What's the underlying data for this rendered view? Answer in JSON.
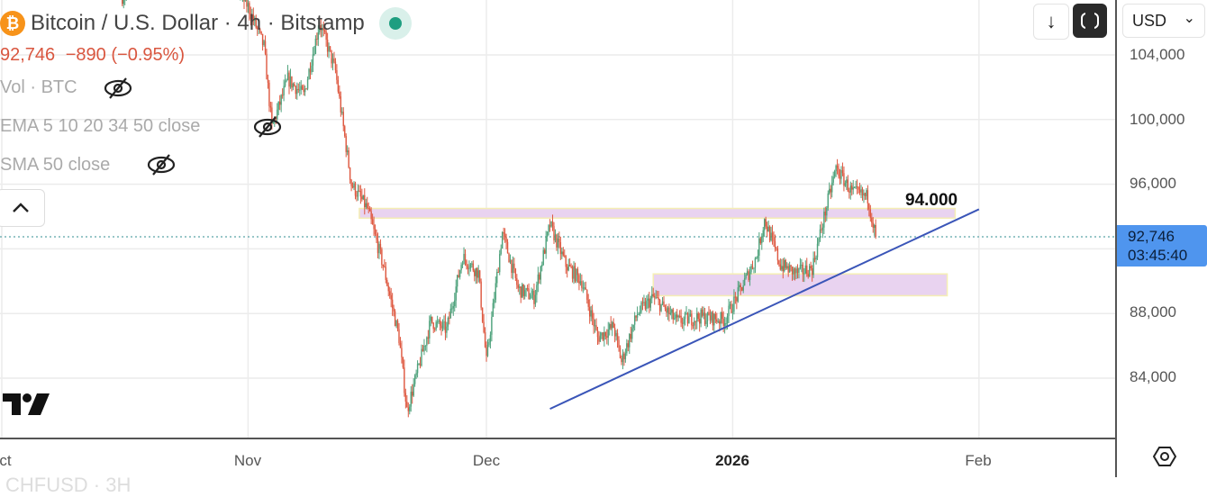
{
  "header": {
    "title": "Bitcoin / U.S. Dollar · 4h · Bitstamp",
    "coin_symbol": "₿",
    "price": "92,746",
    "change": "−890",
    "change_pct": "(−0.95%)"
  },
  "indicators": [
    {
      "label": "Vol · BTC",
      "icon": "eye-off-icon"
    },
    {
      "label": "EMA 5 10 20 34 50 close",
      "icon": "eye-off-icon"
    },
    {
      "label": "SMA 50 close",
      "icon": "eye-off-icon"
    }
  ],
  "toolbar": {
    "scroll_down_icon": "↓",
    "currency": "USD",
    "currency_chevron": "⌄"
  },
  "price_axis": {
    "current_price": "92,746",
    "countdown": "03:45:40",
    "ticks": [
      "104,000",
      "100,000",
      "96,000",
      "88,000",
      "84,000"
    ]
  },
  "time_axis": {
    "ticks": [
      "ct",
      "Nov",
      "Dec",
      "2026",
      "Feb"
    ]
  },
  "footer_ghost": "CHFUSD · 3H",
  "annotations": {
    "zone_label": "94.000"
  },
  "colors": {
    "up": "#4ea27c",
    "down": "#de5840",
    "trendline": "#3a55b8",
    "zone": "#e9d3f0",
    "zone_border": "#f5eeb4",
    "accent": "#4f95ee"
  },
  "chart_data": {
    "type": "candlestick",
    "interval": "4h",
    "symbol": "BTCUSD",
    "ylim": [
      80000,
      107400
    ],
    "y_ticks": [
      84000,
      88000,
      92000,
      96000,
      100000,
      104000
    ],
    "x_ticks": [
      {
        "label": "ct",
        "date": "2025-10-01"
      },
      {
        "label": "Nov",
        "date": "2025-11-01"
      },
      {
        "label": "Dec",
        "date": "2025-12-01"
      },
      {
        "label": "2026",
        "date": "2026-01-01"
      },
      {
        "label": "Feb",
        "date": "2026-02-01"
      }
    ],
    "last_price": 92746,
    "price_path": [
      [
        "2025-10-16",
        107500
      ],
      [
        "2025-10-20",
        110000
      ],
      [
        "2025-10-26",
        111000
      ],
      [
        "2025-10-30",
        108500
      ],
      [
        "2025-11-01",
        107000
      ],
      [
        "2025-11-03",
        104500
      ],
      [
        "2025-11-04",
        99500
      ],
      [
        "2025-11-06",
        102500
      ],
      [
        "2025-11-08",
        101500
      ],
      [
        "2025-11-10",
        106000
      ],
      [
        "2025-11-12",
        103000
      ],
      [
        "2025-11-14",
        96000
      ],
      [
        "2025-11-16",
        94500
      ],
      [
        "2025-11-18",
        91000
      ],
      [
        "2025-11-20",
        86500
      ],
      [
        "2025-11-21",
        82000
      ],
      [
        "2025-11-24",
        87500
      ],
      [
        "2025-11-26",
        87000
      ],
      [
        "2025-11-28",
        91500
      ],
      [
        "2025-11-30",
        90500
      ],
      [
        "2025-12-01",
        85000
      ],
      [
        "2025-12-03",
        93000
      ],
      [
        "2025-12-05",
        89500
      ],
      [
        "2025-12-07",
        89000
      ],
      [
        "2025-12-09",
        93500
      ],
      [
        "2025-12-11",
        91000
      ],
      [
        "2025-12-13",
        90000
      ],
      [
        "2025-12-15",
        86500
      ],
      [
        "2025-12-17",
        87200
      ],
      [
        "2025-12-18",
        85000
      ],
      [
        "2025-12-20",
        88000
      ],
      [
        "2025-12-22",
        89000
      ],
      [
        "2025-12-25",
        87500
      ],
      [
        "2025-12-28",
        87800
      ],
      [
        "2025-12-31",
        87600
      ],
      [
        "2026-01-02",
        89500
      ],
      [
        "2026-01-04",
        91500
      ],
      [
        "2026-01-05",
        93800
      ],
      [
        "2026-01-07",
        91000
      ],
      [
        "2026-01-09",
        90500
      ],
      [
        "2026-01-11",
        90800
      ],
      [
        "2026-01-13",
        95000
      ],
      [
        "2026-01-14",
        97000
      ],
      [
        "2026-01-16",
        95500
      ],
      [
        "2026-01-18",
        95200
      ],
      [
        "2026-01-19",
        92746
      ]
    ],
    "zones": [
      {
        "from": "2025-11-15",
        "to": "2026-01-29",
        "low": 93900,
        "high": 94500
      },
      {
        "from": "2025-12-22",
        "to": "2026-01-28",
        "low": 89100,
        "high": 90450
      }
    ],
    "trendline": {
      "from": [
        "2025-12-09",
        82100
      ],
      "to": [
        "2026-02-01",
        94450
      ]
    },
    "horizontal_price_line": 92746
  }
}
